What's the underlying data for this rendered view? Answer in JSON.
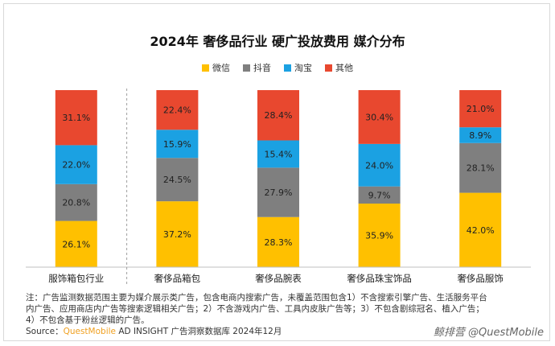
{
  "chart_data": {
    "type": "bar",
    "stacked": true,
    "normalized": true,
    "title": "2024年 奢侈品行业 硬广投放费用 媒介分布",
    "categories": [
      "服饰箱包行业",
      "奢侈品箱包",
      "奢侈品腕表",
      "奢侈品珠宝饰品",
      "奢侈品服饰"
    ],
    "series": [
      {
        "name": "微信",
        "color": "#FFC000",
        "values": [
          26.1,
          37.2,
          28.3,
          35.9,
          42.0
        ],
        "labels": [
          "26.1%",
          "37.2%",
          "28.3%",
          "35.9%",
          "42.0%"
        ]
      },
      {
        "name": "抖音",
        "color": "#7F7F7F",
        "values": [
          20.8,
          24.5,
          27.9,
          9.7,
          28.1
        ],
        "labels": [
          "20.8%",
          "24.5%",
          "27.9%",
          "9.7%",
          "28.1%"
        ]
      },
      {
        "name": "淘宝",
        "color": "#1BA1E2",
        "values": [
          22.0,
          15.9,
          15.4,
          24.0,
          8.9
        ],
        "labels": [
          "22.0%",
          "15.9%",
          "15.4%",
          "24.0%",
          "8.9%"
        ]
      },
      {
        "name": "其他",
        "color": "#E8482F",
        "values": [
          31.1,
          22.4,
          28.4,
          30.4,
          21.0
        ],
        "labels": [
          "31.1%",
          "22.4%",
          "28.4%",
          "30.4%",
          "21.0%"
        ]
      }
    ],
    "ylim": [
      0,
      100
    ],
    "legend_position": "top-center",
    "grid": false,
    "separator_after_category": 0
  },
  "notes": [
    "注：广告监测数据范围主要为媒介展示类广告，包含电商内搜索广告，未覆盖范围包含1）不含搜索引擎广告、生活服务平台",
    "内广告、应用商店内广告等搜索逻辑相关广告；2）不含游戏内广告、工具内皮肤广告等；3）不包含剧综冠名、植入广告；",
    "4）不包含基于粉丝逻辑的广告。"
  ],
  "source": {
    "prefix": "Source：",
    "brand": "QuestMobile",
    "rest": " AD INSIGHT 广告洞察数据库 2024年12月"
  },
  "watermark": "鲸排营 @QuestMobile"
}
